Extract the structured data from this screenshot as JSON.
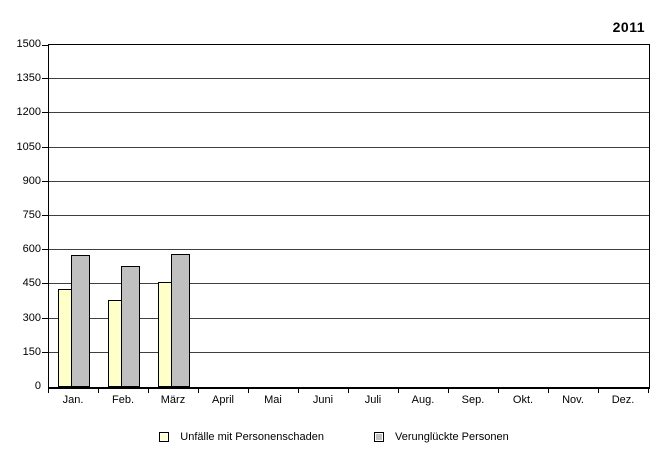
{
  "page": {
    "year_label": "2011"
  },
  "chart_data": {
    "type": "bar",
    "title": "2011",
    "xlabel": "",
    "ylabel": "",
    "categories": [
      "Jan.",
      "Feb.",
      "März",
      "April",
      "Mai",
      "Juni",
      "Juli",
      "Aug.",
      "Sep.",
      "Okt.",
      "Nov.",
      "Dez."
    ],
    "series": [
      {
        "name": "Unfälle mit Personenschaden",
        "color": "#ffffc9",
        "border_color": "#000000",
        "values": [
          430,
          380,
          460,
          null,
          null,
          null,
          null,
          null,
          null,
          null,
          null,
          null
        ]
      },
      {
        "name": "Verunglückte Personen",
        "color": "#c0c0c0",
        "border_color": "#000000",
        "values": [
          580,
          530,
          585,
          null,
          null,
          null,
          null,
          null,
          null,
          null,
          null,
          null
        ]
      }
    ],
    "ylim": [
      0,
      1500
    ],
    "yticks": [
      0,
      150,
      300,
      450,
      600,
      750,
      900,
      1050,
      1200,
      1350,
      1500
    ],
    "grid": true,
    "legend_position": "bottom"
  }
}
